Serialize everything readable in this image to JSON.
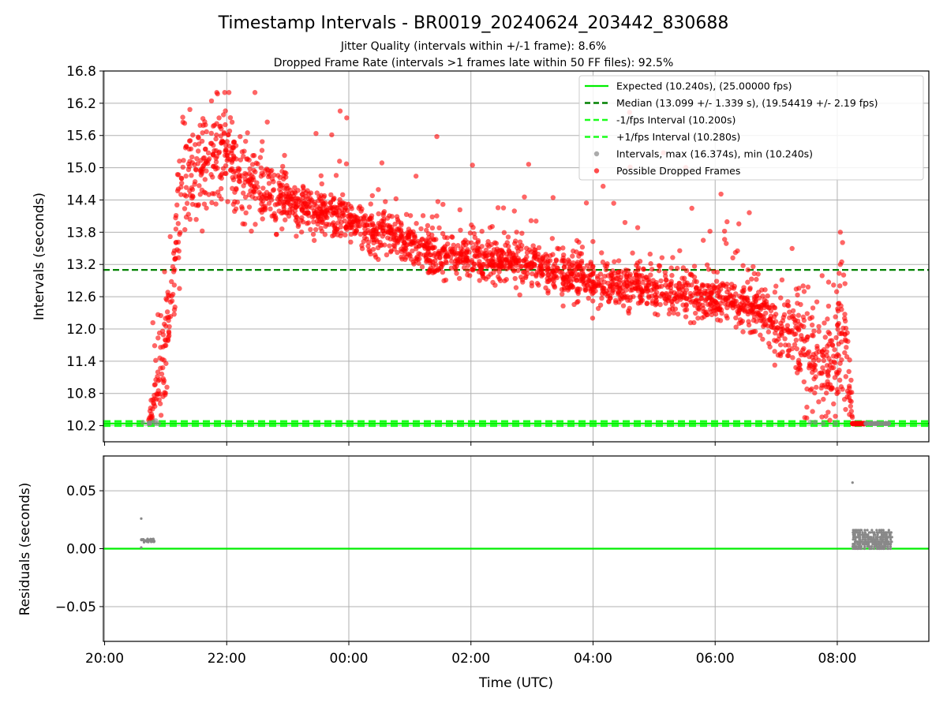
{
  "colors": {
    "expected": "#00ee00",
    "median": "#008000",
    "fps_interval": "#1aff1a",
    "intervals": "#888888",
    "dropped": "#ff0000",
    "grid": "#b0b0b0"
  },
  "chart_data": [
    {
      "type": "scatter",
      "title": "Timestamp Intervals - BR0019_20240624_203442_830688",
      "subtitle_1": "Jitter Quality (intervals within +/-1 frame): 8.6%",
      "subtitle_2": "Dropped Frame Rate (intervals >1 frames late within 50 FF files): 92.5%",
      "ylabel": "Intervals (seconds)",
      "ylim": [
        9.9,
        16.8
      ],
      "yticks": [
        "10.2",
        "10.8",
        "11.4",
        "12.0",
        "12.6",
        "13.2",
        "13.8",
        "14.4",
        "15.0",
        "15.6",
        "16.2",
        "16.8"
      ],
      "grid": true,
      "legend_position": "upper-right",
      "legend": [
        {
          "label": "Expected (10.240s), (25.00000 fps)",
          "style": "solid-line",
          "color": "#00ee00"
        },
        {
          "label": "Median (13.099 +/- 1.339 s), (19.54419 +/- 2.19 fps)",
          "style": "dashed-line",
          "color": "#008000"
        },
        {
          "label": "-1/fps Interval (10.200s)",
          "style": "dashed-line",
          "color": "#1aff1a"
        },
        {
          "label": "+1/fps Interval (10.280s)",
          "style": "dashed-line",
          "color": "#1aff1a"
        },
        {
          "label": "Intervals, max (16.374s), min (10.240s)",
          "style": "dot",
          "color": "#888888"
        },
        {
          "label": "Possible Dropped Frames",
          "style": "dot",
          "color": "#ff0000"
        }
      ],
      "reference_lines": {
        "expected": 10.24,
        "median": 13.099,
        "minus_fps": 10.2,
        "plus_fps": 10.28
      },
      "trend_x_hours": [
        20.72,
        20.85,
        21.05,
        21.3,
        21.6,
        22.0,
        22.3,
        22.7,
        23.2,
        23.7,
        0.2,
        0.8,
        1.4,
        2.0,
        2.6,
        3.2,
        3.8,
        4.4,
        5.0,
        5.6,
        6.2,
        6.8,
        7.2,
        7.5,
        7.7,
        7.9,
        8.1,
        8.25
      ],
      "trend_y": [
        10.25,
        10.8,
        12.1,
        14.8,
        14.9,
        15.3,
        14.7,
        14.5,
        14.3,
        14.1,
        13.9,
        13.7,
        13.4,
        13.3,
        13.3,
        13.1,
        12.9,
        12.8,
        12.75,
        12.65,
        12.5,
        12.3,
        12.0,
        11.5,
        11.2,
        11.4,
        11.8,
        10.25
      ],
      "trend_spread": [
        0.05,
        0.4,
        0.45,
        0.5,
        0.5,
        0.45,
        0.4,
        0.3,
        0.2,
        0.2,
        0.2,
        0.2,
        0.2,
        0.2,
        0.2,
        0.2,
        0.2,
        0.2,
        0.2,
        0.2,
        0.2,
        0.25,
        0.3,
        0.5,
        0.5,
        0.6,
        0.8,
        0.05
      ],
      "notable_points": [
        {
          "x_hours": 21.85,
          "y": 16.374
        },
        {
          "x_hours": 20.63,
          "y": 10.26
        },
        {
          "x_hours": 20.8,
          "y": 10.62
        },
        {
          "x_hours": 8.05,
          "y": 13.8
        },
        {
          "x_hours": 8.05,
          "y": 13.2
        },
        {
          "x_hours": 7.85,
          "y": 10.45
        }
      ],
      "late_cluster": {
        "x_hours_range": [
          8.25,
          8.45
        ],
        "y": 10.24
      }
    },
    {
      "type": "scatter",
      "xlabel": "Time (UTC)",
      "ylabel": "Residuals (seconds)",
      "ylim": [
        -0.08,
        0.08
      ],
      "yticks": [
        "−0.05",
        "0.00",
        "0.05"
      ],
      "xticks": [
        "20:00",
        "22:00",
        "00:00",
        "02:00",
        "04:00",
        "06:00",
        "08:00"
      ],
      "xlim_hours": [
        19.98,
        33.5
      ],
      "grid": true,
      "zero_line": 0.0,
      "early_cluster": {
        "x_hours_range": [
          20.6,
          20.82
        ],
        "y": 0.007,
        "outlier": {
          "x_hours": 20.6,
          "y": 0.026
        }
      },
      "late_cluster": {
        "x_hours_range": [
          8.25,
          8.9
        ],
        "y_range": [
          0.0,
          0.016
        ],
        "outlier": {
          "x_hours": 8.25,
          "y": 0.057
        }
      }
    }
  ]
}
